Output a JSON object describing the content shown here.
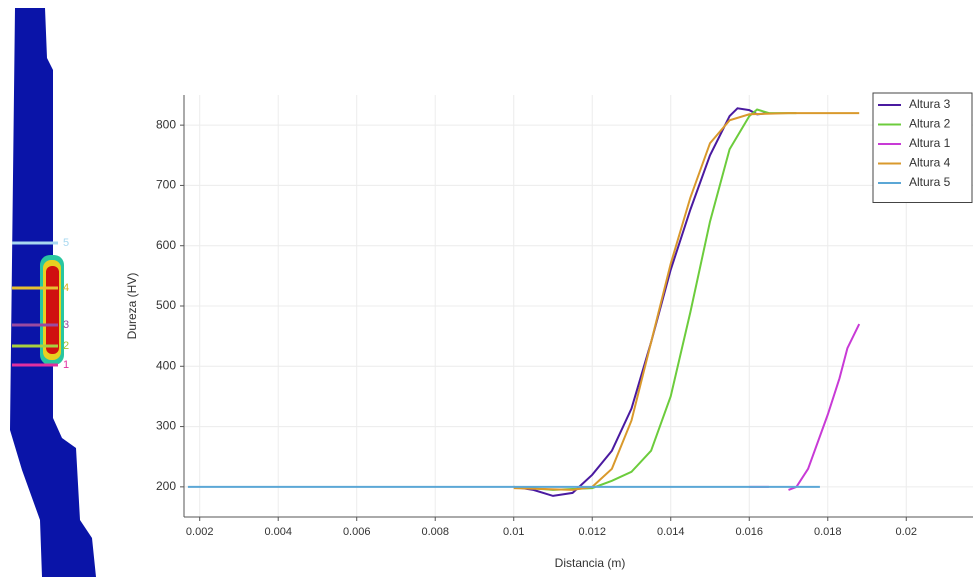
{
  "figure": {
    "markers": [
      "5",
      "4",
      "3",
      "2",
      "1"
    ]
  },
  "chart_data": {
    "type": "line",
    "xlabel": "Distancia (m)",
    "ylabel": "Dureza (HV)",
    "xlim": [
      0.0016,
      0.0217
    ],
    "ylim": [
      150,
      850
    ],
    "xticks": [
      0.002,
      0.004,
      0.006,
      0.008,
      0.01,
      0.012,
      0.014,
      0.016,
      0.018,
      0.02
    ],
    "yticks": [
      200,
      300,
      400,
      500,
      600,
      700,
      800
    ],
    "grid": true,
    "legend": "upper right",
    "series": [
      {
        "name": "Altura 3",
        "color": "#4a1aa0",
        "x": [
          0.01,
          0.0105,
          0.011,
          0.0115,
          0.012,
          0.0125,
          0.013,
          0.0135,
          0.014,
          0.0145,
          0.015,
          0.0155,
          0.0157,
          0.016,
          0.0162,
          0.0165
        ],
        "values": [
          200,
          195,
          185,
          190,
          220,
          260,
          330,
          440,
          560,
          660,
          750,
          815,
          828,
          825,
          818,
          820
        ]
      },
      {
        "name": "Altura 2",
        "color": "#6ccc3c",
        "x": [
          0.01,
          0.011,
          0.012,
          0.0125,
          0.013,
          0.0135,
          0.014,
          0.0145,
          0.015,
          0.0155,
          0.016,
          0.0162,
          0.0165,
          0.0172
        ],
        "values": [
          200,
          195,
          198,
          210,
          225,
          260,
          350,
          490,
          640,
          760,
          815,
          826,
          820,
          820
        ]
      },
      {
        "name": "Altura 1",
        "color": "#c83ad6",
        "x": [
          0.016,
          0.0165,
          0.0168,
          0.017,
          0.0172,
          0.0175,
          0.018,
          0.0183,
          0.0185,
          0.0188
        ],
        "values": [
          200,
          200,
          null,
          195,
          200,
          230,
          320,
          380,
          430,
          470
        ]
      },
      {
        "name": "Altura 4",
        "color": "#d9992c",
        "x": [
          0.01,
          0.0115,
          0.012,
          0.0125,
          0.013,
          0.0135,
          0.014,
          0.0145,
          0.015,
          0.0155,
          0.016,
          0.017,
          0.0188
        ],
        "values": [
          198,
          195,
          200,
          230,
          310,
          440,
          570,
          680,
          770,
          808,
          818,
          820,
          820
        ]
      },
      {
        "name": "Altura 5",
        "color": "#5ba7d6",
        "x": [
          0.0017,
          0.0178
        ],
        "values": [
          200,
          200
        ]
      }
    ]
  }
}
